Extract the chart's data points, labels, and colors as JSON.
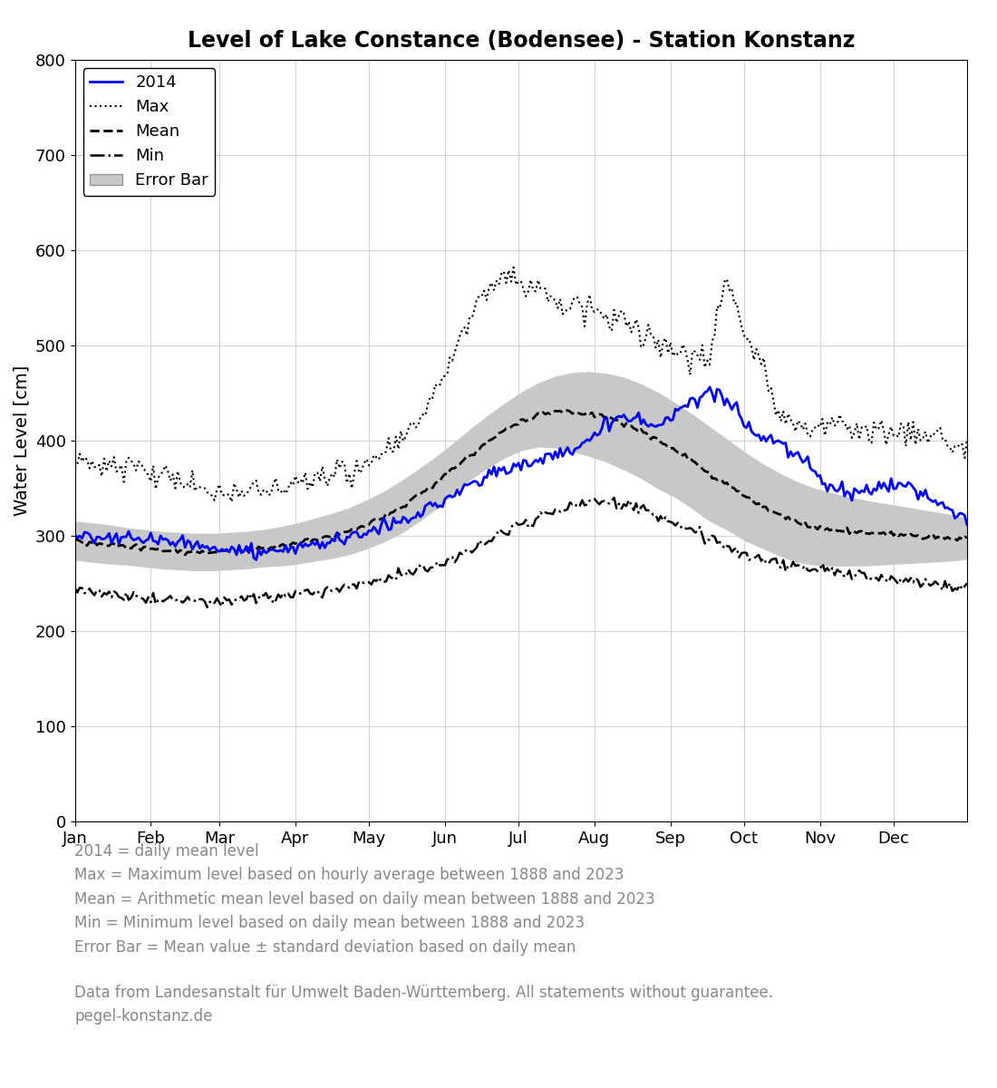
{
  "title": "Level of Lake Constance (Bodensee) - Station Konstanz",
  "ylabel": "Water Level [cm]",
  "ylim": [
    0,
    800
  ],
  "yticks": [
    0,
    100,
    200,
    300,
    400,
    500,
    600,
    700,
    800
  ],
  "month_labels": [
    "Jan",
    "Feb",
    "Mar",
    "Apr",
    "May",
    "Jun",
    "Jul",
    "Aug",
    "Sep",
    "Oct",
    "Nov",
    "Dec"
  ],
  "legend_labels": [
    "2014",
    "Max",
    "Mean",
    "Min",
    "Error Bar"
  ],
  "line_2014_color": "#0000ff",
  "line_max_color": "#000000",
  "line_mean_color": "#000000",
  "line_min_color": "#000000",
  "error_bar_color": "#c8c8c8",
  "footnote_lines": [
    "2014 = daily mean level",
    "Max = Maximum level based on hourly average between 1888 and 2023",
    "Mean = Arithmetic mean level based on daily mean between 1888 and 2023",
    "Min = Minimum level based on daily mean between 1888 and 2023",
    "Error Bar = Mean value ± standard deviation based on daily mean"
  ],
  "source_lines": [
    "Data from Landesanstalt für Umwelt Baden-Württemberg. All statements without guarantee.",
    "pegel-konstanz.de"
  ],
  "title_fontsize": 17,
  "label_fontsize": 14,
  "tick_fontsize": 13,
  "legend_fontsize": 13,
  "footnote_fontsize": 12,
  "source_fontsize": 12,
  "days_max": [
    1,
    8,
    15,
    22,
    29,
    36,
    43,
    50,
    57,
    64,
    71,
    78,
    85,
    92,
    99,
    106,
    113,
    120,
    127,
    134,
    141,
    148,
    155,
    162,
    169,
    176,
    183,
    190,
    197,
    204,
    211,
    218,
    225,
    232,
    239,
    246,
    253,
    260,
    267,
    274,
    281,
    288,
    295,
    302,
    309,
    316,
    323,
    330,
    337,
    344,
    351,
    358,
    365
  ],
  "vals_max": [
    378,
    375,
    372,
    372,
    368,
    363,
    358,
    352,
    348,
    346,
    345,
    347,
    350,
    355,
    360,
    363,
    368,
    375,
    385,
    398,
    418,
    448,
    490,
    530,
    558,
    570,
    566,
    558,
    548,
    540,
    535,
    530,
    525,
    518,
    505,
    492,
    488,
    490,
    575,
    510,
    490,
    430,
    415,
    413,
    415,
    415,
    413,
    410,
    408,
    405,
    402,
    398,
    390
  ],
  "days_mean": [
    1,
    8,
    15,
    22,
    29,
    36,
    43,
    50,
    57,
    64,
    71,
    78,
    85,
    92,
    99,
    106,
    113,
    120,
    127,
    134,
    141,
    148,
    155,
    162,
    169,
    176,
    183,
    190,
    197,
    204,
    211,
    218,
    225,
    232,
    239,
    246,
    253,
    260,
    267,
    274,
    281,
    288,
    295,
    302,
    309,
    316,
    323,
    330,
    337,
    344,
    351,
    358,
    365
  ],
  "vals_mean": [
    295,
    293,
    291,
    289,
    287,
    285,
    284,
    283,
    283,
    284,
    285,
    287,
    289,
    292,
    296,
    300,
    305,
    312,
    320,
    330,
    342,
    355,
    370,
    385,
    398,
    410,
    420,
    427,
    430,
    430,
    428,
    424,
    418,
    410,
    400,
    390,
    378,
    365,
    354,
    342,
    332,
    323,
    315,
    310,
    307,
    305,
    303,
    302,
    301,
    300,
    299,
    298,
    297
  ],
  "days_min": [
    1,
    8,
    15,
    22,
    29,
    36,
    43,
    50,
    57,
    64,
    71,
    78,
    85,
    92,
    99,
    106,
    113,
    120,
    127,
    134,
    141,
    148,
    155,
    162,
    169,
    176,
    183,
    190,
    197,
    204,
    211,
    218,
    225,
    232,
    239,
    246,
    253,
    260,
    267,
    274,
    281,
    288,
    295,
    302,
    309,
    316,
    323,
    330,
    337,
    344,
    351,
    358,
    365
  ],
  "vals_min": [
    242,
    240,
    238,
    236,
    234,
    233,
    232,
    232,
    232,
    233,
    234,
    235,
    237,
    239,
    241,
    243,
    246,
    250,
    254,
    259,
    264,
    269,
    275,
    283,
    292,
    302,
    312,
    320,
    327,
    332,
    335,
    335,
    333,
    328,
    320,
    313,
    306,
    298,
    289,
    280,
    273,
    270,
    268,
    266,
    263,
    260,
    257,
    255,
    253,
    251,
    249,
    247,
    245
  ],
  "days_upper": [
    1,
    8,
    15,
    22,
    29,
    36,
    43,
    50,
    57,
    64,
    71,
    78,
    85,
    92,
    99,
    106,
    113,
    120,
    127,
    134,
    141,
    148,
    155,
    162,
    169,
    176,
    183,
    190,
    197,
    204,
    211,
    218,
    225,
    232,
    239,
    246,
    253,
    260,
    267,
    274,
    281,
    288,
    295,
    302,
    309,
    316,
    323,
    330,
    337,
    344,
    351,
    358,
    365
  ],
  "vals_upper": [
    315,
    313,
    311,
    308,
    306,
    304,
    303,
    302,
    302,
    303,
    304,
    306,
    309,
    313,
    318,
    323,
    329,
    337,
    346,
    357,
    369,
    382,
    396,
    411,
    425,
    438,
    450,
    460,
    467,
    471,
    472,
    470,
    466,
    459,
    450,
    439,
    427,
    414,
    401,
    388,
    376,
    366,
    357,
    350,
    345,
    341,
    337,
    334,
    331,
    328,
    325,
    322,
    318
  ],
  "days_lower": [
    1,
    8,
    15,
    22,
    29,
    36,
    43,
    50,
    57,
    64,
    71,
    78,
    85,
    92,
    99,
    106,
    113,
    120,
    127,
    134,
    141,
    148,
    155,
    162,
    169,
    176,
    183,
    190,
    197,
    204,
    211,
    218,
    225,
    232,
    239,
    246,
    253,
    260,
    267,
    274,
    281,
    288,
    295,
    302,
    309,
    316,
    323,
    330,
    337,
    344,
    351,
    358,
    365
  ],
  "vals_lower": [
    275,
    273,
    271,
    270,
    268,
    266,
    265,
    264,
    264,
    265,
    266,
    268,
    269,
    271,
    274,
    277,
    281,
    287,
    294,
    303,
    315,
    328,
    344,
    359,
    371,
    382,
    390,
    394,
    393,
    389,
    384,
    378,
    370,
    361,
    350,
    341,
    329,
    316,
    307,
    296,
    288,
    280,
    273,
    270,
    269,
    269,
    269,
    270,
    271,
    272,
    273,
    274,
    276
  ],
  "days_2014": [
    1,
    5,
    10,
    15,
    20,
    25,
    30,
    35,
    40,
    46,
    52,
    57,
    62,
    67,
    72,
    77,
    82,
    87,
    92,
    97,
    102,
    107,
    112,
    117,
    122,
    127,
    132,
    137,
    142,
    147,
    152,
    157,
    162,
    167,
    172,
    177,
    182,
    187,
    192,
    197,
    202,
    207,
    212,
    217,
    220,
    222,
    225,
    228,
    232,
    236,
    240,
    244,
    248,
    252,
    256,
    260,
    265,
    270,
    275,
    280,
    285,
    290,
    295,
    300,
    305,
    310,
    316,
    322,
    328,
    334,
    340,
    346,
    352,
    358,
    365
  ],
  "vals_2014": [
    301,
    301,
    300,
    300,
    299,
    298,
    298,
    296,
    293,
    291,
    289,
    287,
    286,
    285,
    285,
    285,
    285,
    286,
    288,
    290,
    293,
    296,
    299,
    302,
    306,
    310,
    314,
    318,
    323,
    330,
    337,
    345,
    353,
    360,
    365,
    368,
    372,
    376,
    380,
    385,
    390,
    395,
    405,
    415,
    420,
    425,
    428,
    425,
    420,
    415,
    420,
    425,
    435,
    440,
    445,
    452,
    445,
    435,
    415,
    405,
    400,
    395,
    385,
    375,
    360,
    352,
    345,
    348,
    350,
    352,
    350,
    345,
    335,
    325,
    320
  ]
}
